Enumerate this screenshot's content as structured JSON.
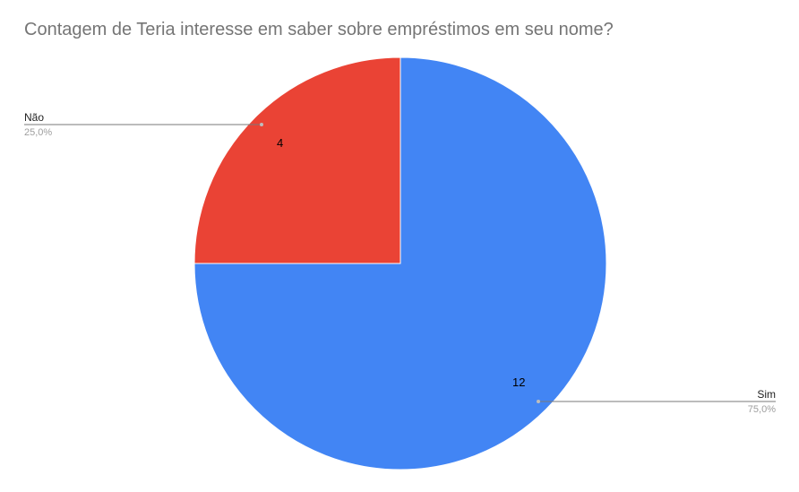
{
  "chart_data": {
    "type": "pie",
    "title": "Contagem de Teria interesse em saber sobre empréstimos em seu nome?",
    "slices": [
      {
        "label": "Não",
        "value": 4,
        "percent_label": "25,0%",
        "value_label": "4",
        "color": "#ea4335"
      },
      {
        "label": "Sim",
        "value": 12,
        "percent_label": "75,0%",
        "value_label": "12",
        "color": "#4285f4"
      }
    ],
    "legend": "none",
    "labels": "callout"
  }
}
